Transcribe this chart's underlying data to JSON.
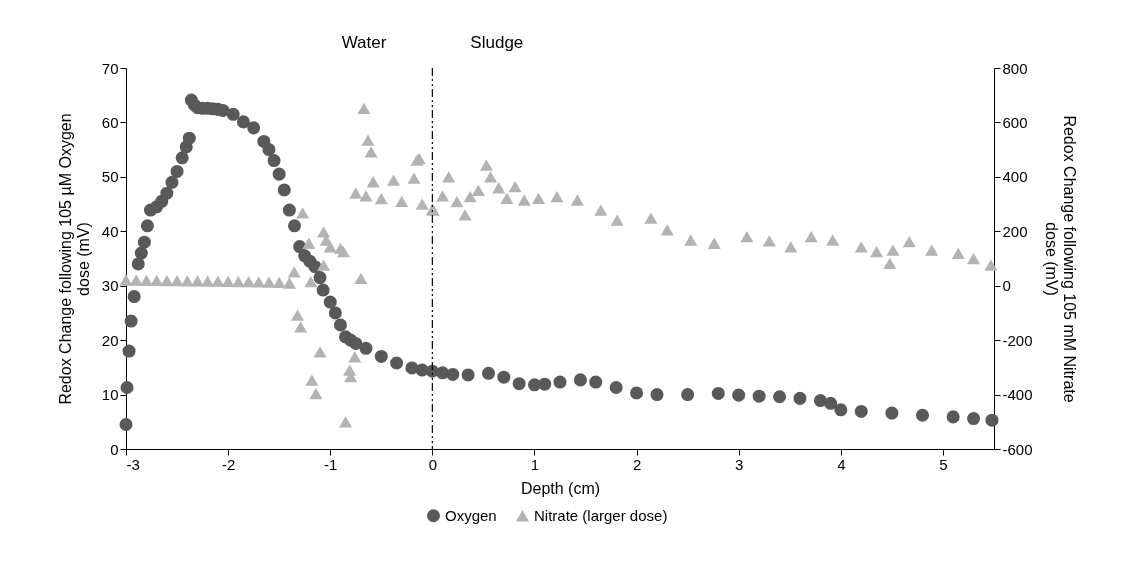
{
  "chart_data": {
    "type": "scatter",
    "xlabel": "Depth (cm)",
    "ylabel": "Redox Change following 105 µM Oxygen dose (mV)",
    "y2label": "Redox Change following 105 mM Nitrate dose (mV)",
    "xlim": [
      -3,
      5.5
    ],
    "xticks": [
      -3,
      -2,
      -1,
      0,
      1,
      2,
      3,
      4,
      5
    ],
    "ylim": [
      0,
      70
    ],
    "yticks": [
      0,
      10,
      20,
      30,
      40,
      50,
      60,
      70
    ],
    "y2lim": [
      -600,
      800
    ],
    "y2ticks": [
      -600,
      -400,
      -200,
      0,
      200,
      400,
      600,
      800
    ],
    "legend": "bottom",
    "grid": false,
    "annotations": [
      "Water",
      "Sludge"
    ],
    "ref_lines": [
      {
        "axis": "x",
        "value": 0,
        "color": "#000000",
        "line_style": "dashdot"
      }
    ],
    "series": [
      {
        "name": "Oxygen",
        "color": "#595959",
        "marker": "circle",
        "x": [
          -3,
          -2.99,
          -2.97,
          -2.95,
          -2.92,
          -2.88,
          -2.85,
          -2.82,
          -2.79,
          -2.76,
          -2.7,
          -2.65,
          -2.6,
          -2.55,
          -2.5,
          -2.45,
          -2.41,
          -2.38,
          -2.36,
          -2.33,
          -2.3,
          -2.25,
          -2.2,
          -2.15,
          -2.1,
          -2.05,
          -1.95,
          -1.85,
          -1.75,
          -1.65,
          -1.6,
          -1.55,
          -1.5,
          -1.45,
          -1.4,
          -1.35,
          -1.3,
          -1.25,
          -1.2,
          -1.15,
          -1.1,
          -1.07,
          -1.0,
          -0.95,
          -0.9,
          -0.85,
          -0.8,
          -0.75,
          -0.65,
          -0.5,
          -0.35,
          -0.2,
          -0.1,
          0,
          0.1,
          0.2,
          0.35,
          0.55,
          0.7,
          0.85,
          1.0,
          1.1,
          1.25,
          1.45,
          1.6,
          1.8,
          2.0,
          2.2,
          2.5,
          2.8,
          3.0,
          3.2,
          3.4,
          3.6,
          3.8,
          3.9,
          4.0,
          4.2,
          4.5,
          4.8,
          5.1,
          5.3,
          5.48
        ],
        "values": [
          4.5,
          11.3,
          18,
          23.5,
          28,
          34,
          36,
          38,
          41,
          43.9,
          44.5,
          45.5,
          47,
          49,
          51,
          53.5,
          55.5,
          57.1,
          64.1,
          63.2,
          62.7,
          62.6,
          62.6,
          62.5,
          62.4,
          62.2,
          61.5,
          60.1,
          59,
          56.5,
          55,
          53,
          50.5,
          47.6,
          43.9,
          41,
          37.2,
          35.5,
          34.5,
          33.5,
          31.5,
          29.2,
          27,
          25,
          22.8,
          20.6,
          20,
          19.4,
          18.5,
          17,
          15.8,
          14.9,
          14.5,
          14.3,
          14,
          13.7,
          13.6,
          13.9,
          13.2,
          12,
          11.8,
          11.9,
          12.3,
          12.7,
          12.3,
          11.3,
          10.3,
          10,
          10,
          10.2,
          9.9,
          9.7,
          9.6,
          9.3,
          8.9,
          8.4,
          7.2,
          6.9,
          6.6,
          6.2,
          5.9,
          5.6,
          5.3
        ]
      },
      {
        "name": "Nitrate (larger dose)",
        "color": "#b3b3b3",
        "marker": "triangle",
        "axis": "y2",
        "x": [
          -3,
          -2.9,
          -2.8,
          -2.7,
          -2.6,
          -2.5,
          -2.4,
          -2.3,
          -2.2,
          -2.1,
          -2.0,
          -1.9,
          -1.8,
          -1.7,
          -1.6,
          -1.5,
          -1.4,
          -1.353,
          -1.32,
          -1.29,
          -1.27,
          -1.21,
          -1.19,
          -1.18,
          -1.14,
          -1.1,
          -1.065,
          -1.065,
          -1.04,
          -1.0,
          -0.9,
          -0.87,
          -0.85,
          -0.81,
          -0.8,
          -0.76,
          -0.75,
          -0.7,
          -0.67,
          -0.65,
          -0.63,
          -0.6,
          -0.58,
          -0.5,
          -0.38,
          -0.3,
          -0.18,
          -0.15,
          -0.13,
          -0.1,
          0,
          0.01,
          0.1,
          0.16,
          0.24,
          0.32,
          0.37,
          0.45,
          0.53,
          0.57,
          0.65,
          0.73,
          0.81,
          0.9,
          1.04,
          1.22,
          1.42,
          1.65,
          1.81,
          2.14,
          2.3,
          2.53,
          2.76,
          3.08,
          3.3,
          3.51,
          3.71,
          3.92,
          4.2,
          4.35,
          4.48,
          4.51,
          4.67,
          4.89,
          5.15,
          5.3,
          5.47
        ],
        "values": [
          21,
          21,
          20,
          20,
          19,
          19,
          18,
          18,
          17,
          17,
          16,
          15,
          15,
          14,
          13,
          12,
          10,
          51,
          -108,
          -151,
          268,
          156,
          15,
          -347,
          -396,
          -243,
          198,
          76,
          168,
          143,
          137,
          125,
          -500,
          -310,
          -334,
          -261,
          340,
          27,
          652,
          330,
          535,
          492,
          382,
          320,
          388,
          310,
          395,
          462,
          468,
          300,
          280,
          278,
          330,
          400,
          309,
          260,
          327,
          350,
          443,
          400,
          360,
          321,
          364,
          315,
          321,
          327,
          315,
          278,
          241,
          248,
          205,
          168,
          156,
          180,
          165,
          143,
          180,
          168,
          143,
          125,
          82,
          131,
          162,
          131,
          119,
          100,
          76
        ]
      }
    ]
  }
}
